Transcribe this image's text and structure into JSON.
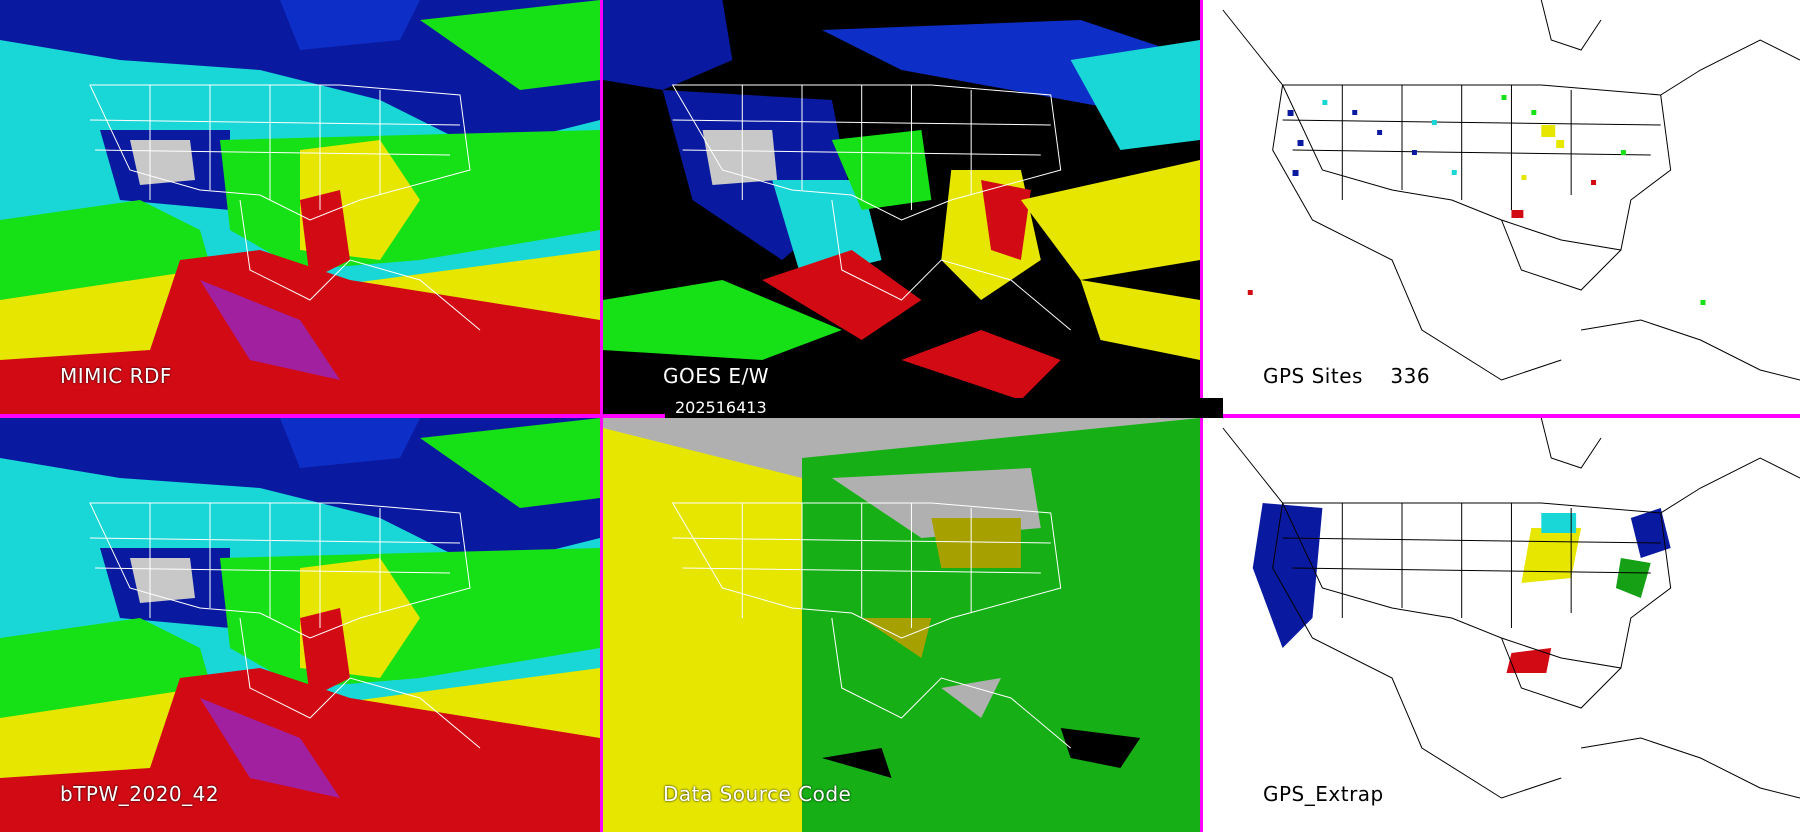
{
  "panels": [
    {
      "id": "mimic",
      "label": "MIMIC RDF"
    },
    {
      "id": "goes",
      "label": "GOES E/W"
    },
    {
      "id": "gps-sites",
      "label": "GPS Sites",
      "count": "336"
    },
    {
      "id": "btpw",
      "label": "bTPW_2020_42"
    },
    {
      "id": "data-source",
      "label": "Data Source Code"
    },
    {
      "id": "gps-extrap",
      "label": "GPS_Extrap"
    }
  ],
  "timestamp": "202516413",
  "colors": {
    "divider": "#ff00ff",
    "dry_low": "#0a1aa0",
    "cyan": "#19d7d7",
    "green": "#16e016",
    "yellow": "#e6e600",
    "red": "#d20a14",
    "magenta": "#a020a0",
    "grey": "#b0b0b0"
  }
}
